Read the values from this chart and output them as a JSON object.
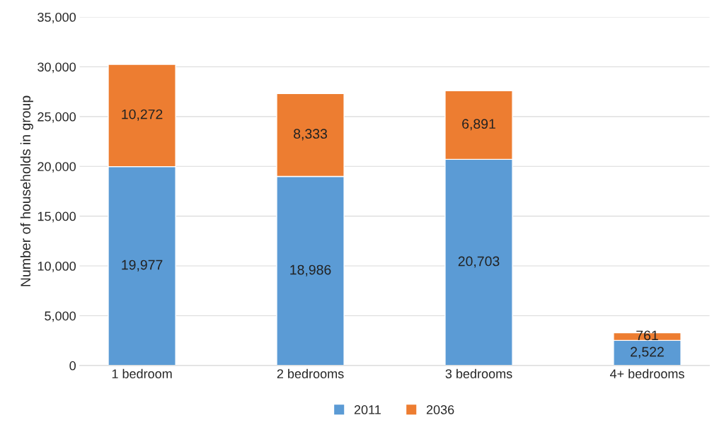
{
  "chart_data": {
    "type": "bar",
    "stacked": true,
    "ylabel": "Number of households in group",
    "categories": [
      "1 bedroom",
      "2 bedrooms",
      "3 bedrooms",
      "4+ bedrooms"
    ],
    "series": [
      {
        "name": "2011",
        "color": "#5b9bd5",
        "values": [
          19977,
          18986,
          20703,
          2522
        ]
      },
      {
        "name": "2036",
        "color": "#ed7d31",
        "values": [
          10272,
          8333,
          6891,
          761
        ]
      }
    ],
    "value_labels": [
      [
        "19,977",
        "18,986",
        "20,703",
        "2,522"
      ],
      [
        "10,272",
        "8,333",
        "6,891",
        "761"
      ]
    ],
    "ylim": [
      0,
      35000
    ],
    "yticks": [
      {
        "value": 0,
        "label": "0"
      },
      {
        "value": 5000,
        "label": "5,000"
      },
      {
        "value": 10000,
        "label": "10,000"
      },
      {
        "value": 15000,
        "label": "15,000"
      },
      {
        "value": 20000,
        "label": "20,000"
      },
      {
        "value": 25000,
        "label": "25,000"
      },
      {
        "value": 30000,
        "label": "30,000"
      },
      {
        "value": 35000,
        "label": "35,000"
      }
    ],
    "grid": "y",
    "legend": "bottom"
  }
}
